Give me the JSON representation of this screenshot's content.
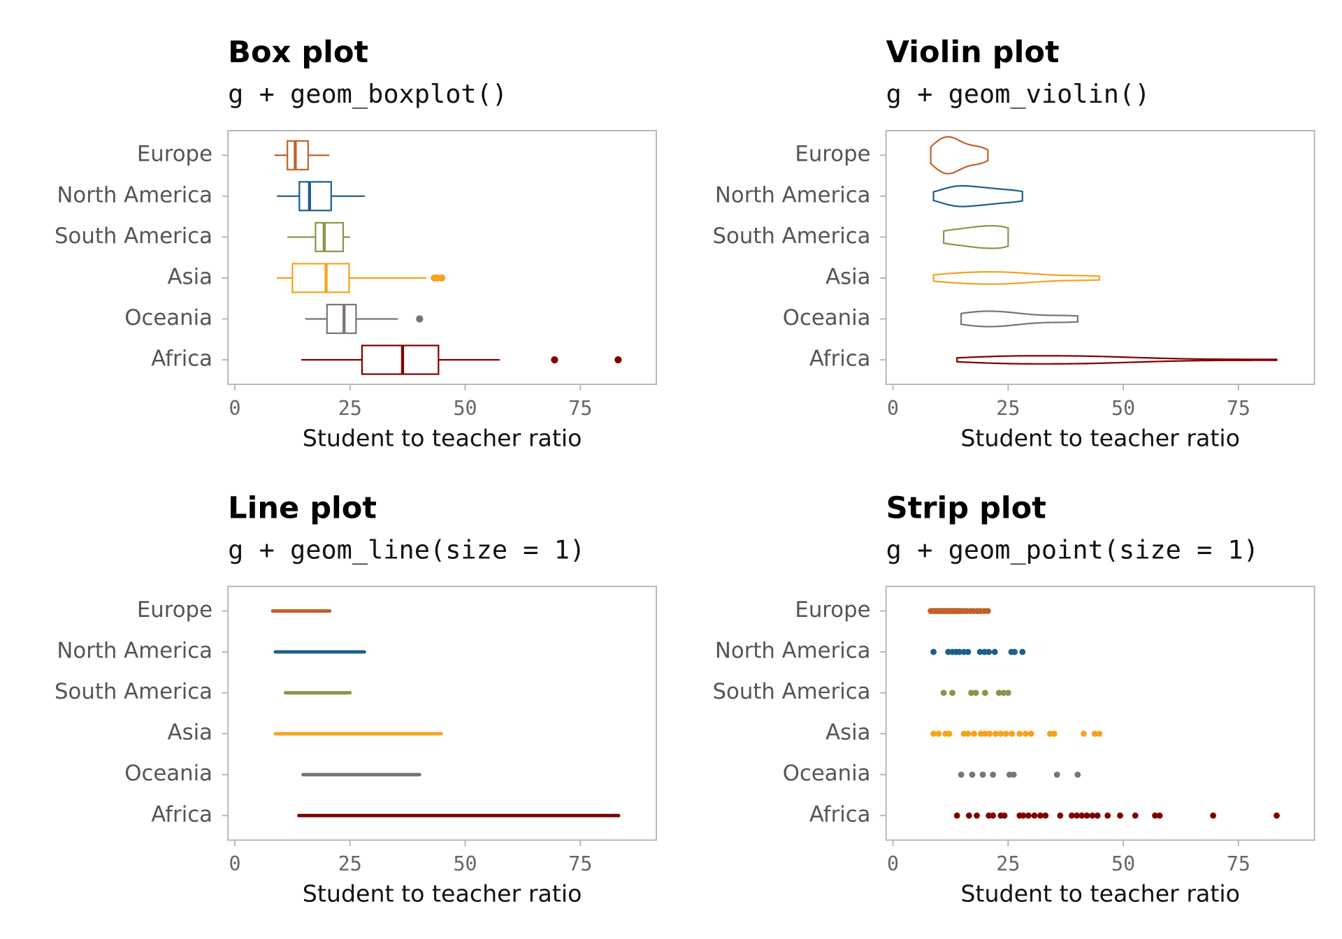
{
  "chart_data": [
    {
      "type": "box",
      "title": "Box plot",
      "subtitle": "g + geom_boxplot()",
      "xlabel": "Student to teacher ratio",
      "categories": [
        "Europe",
        "North America",
        "South America",
        "Asia",
        "Oceania",
        "Africa"
      ],
      "colors": [
        "#c1612a",
        "#1d5f8a",
        "#86974a",
        "#f5a31f",
        "#767676",
        "#800000"
      ],
      "boxes": [
        {
          "min": 8.6,
          "q1": 11.4,
          "median": 13.1,
          "q3": 15.9,
          "max": 20.5,
          "outliers": []
        },
        {
          "min": 9.1,
          "q1": 14.0,
          "median": 16.2,
          "q3": 20.9,
          "max": 28.2,
          "outliers": []
        },
        {
          "min": 11.4,
          "q1": 17.5,
          "median": 19.4,
          "q3": 23.5,
          "max": 25.0,
          "outliers": []
        },
        {
          "min": 9.1,
          "q1": 12.5,
          "median": 19.8,
          "q3": 24.8,
          "max": 41.6,
          "outliers": [
            43.3,
            44.0,
            44.9
          ]
        },
        {
          "min": 15.3,
          "q1": 20.0,
          "median": 23.7,
          "q3": 26.3,
          "max": 35.4,
          "outliers": [
            40.1
          ]
        },
        {
          "min": 14.4,
          "q1": 27.6,
          "median": 36.4,
          "q3": 44.2,
          "max": 57.5,
          "outliers": [
            69.4,
            83.2
          ]
        }
      ],
      "xlim": [
        -1.5,
        91.5
      ],
      "xticks": [
        0,
        25,
        50,
        75
      ]
    },
    {
      "type": "violin",
      "title": "Violin plot",
      "subtitle": "g + geom_violin()",
      "xlabel": "Student to teacher ratio",
      "categories": [
        "Europe",
        "North America",
        "South America",
        "Asia",
        "Oceania",
        "Africa"
      ],
      "colors": [
        "#c1612a",
        "#1d5f8a",
        "#86974a",
        "#f5a31f",
        "#767676",
        "#800000"
      ],
      "values": [
        [
          8.2,
          8.8,
          9.3,
          9.8,
          10.2,
          10.6,
          11,
          11.3,
          11.7,
          12,
          12.3,
          12.6,
          13,
          13.4,
          13.8,
          14.2,
          14.7,
          15.3,
          16,
          16.8,
          17.5,
          18.3,
          19,
          19.8,
          20.6
        ],
        [
          8.8,
          12,
          12.9,
          13.7,
          14.4,
          15.4,
          16.3,
          18.9,
          19.9,
          20.8,
          22.1,
          25.7,
          26.4,
          28.1
        ],
        [
          11,
          12.9,
          17,
          18,
          20,
          23,
          24,
          25
        ],
        [
          8.8,
          9.9,
          11.4,
          12.2,
          15.4,
          16.3,
          17.6,
          19.1,
          20,
          21,
          22.3,
          23.4,
          24.5,
          25.8,
          27.5,
          28.8,
          30,
          34.1,
          35,
          41.4,
          43.8,
          44.8
        ],
        [
          14.8,
          17.2,
          19.5,
          21.7,
          25.3,
          26.2,
          35.6,
          40.1
        ],
        [
          13.9,
          16.5,
          18.2,
          20.8,
          21.7,
          23.4,
          24.2,
          27.5,
          28.3,
          29.4,
          30.7,
          32,
          33.1,
          36.3,
          38.8,
          39.9,
          41,
          42.1,
          43.3,
          44.4,
          46.6,
          49.3,
          52.6,
          56.9,
          57.9,
          69.5,
          83.3
        ]
      ],
      "xlim": [
        -1.5,
        91.5
      ],
      "xticks": [
        0,
        25,
        50,
        75
      ]
    },
    {
      "type": "line",
      "title": "Line plot",
      "subtitle": "g + geom_line(size = 1)",
      "xlabel": "Student to teacher ratio",
      "categories": [
        "Europe",
        "North America",
        "South America",
        "Asia",
        "Oceania",
        "Africa"
      ],
      "colors": [
        "#c1612a",
        "#1d5f8a",
        "#86974a",
        "#f5a31f",
        "#767676",
        "#800000"
      ],
      "values": [
        [
          8.2,
          8.8,
          9.3,
          9.8,
          10.2,
          10.6,
          11,
          11.3,
          11.7,
          12,
          12.3,
          12.6,
          13,
          13.4,
          13.8,
          14.2,
          14.7,
          15.3,
          16,
          16.8,
          17.5,
          18.3,
          19,
          19.8,
          20.6
        ],
        [
          8.8,
          12,
          12.9,
          13.7,
          14.4,
          15.4,
          16.3,
          18.9,
          19.9,
          20.8,
          22.1,
          25.7,
          26.4,
          28.1
        ],
        [
          11,
          12.9,
          17,
          18,
          20,
          23,
          24,
          25
        ],
        [
          8.8,
          9.9,
          11.4,
          12.2,
          15.4,
          16.3,
          17.6,
          19.1,
          20,
          21,
          22.3,
          23.4,
          24.5,
          25.8,
          27.5,
          28.8,
          30,
          34.1,
          35,
          41.4,
          43.8,
          44.8
        ],
        [
          14.8,
          17.2,
          19.5,
          21.7,
          25.3,
          26.2,
          35.6,
          40.1
        ],
        [
          13.9,
          16.5,
          18.2,
          20.8,
          21.7,
          23.4,
          24.2,
          27.5,
          28.3,
          29.4,
          30.7,
          32,
          33.1,
          36.3,
          38.8,
          39.9,
          41,
          42.1,
          43.3,
          44.4,
          46.6,
          49.3,
          52.6,
          56.9,
          57.9,
          69.5,
          83.3
        ]
      ],
      "xlim": [
        -1.5,
        91.5
      ],
      "xticks": [
        0,
        25,
        50,
        75
      ]
    },
    {
      "type": "strip",
      "title": "Strip plot",
      "subtitle": "g + geom_point(size = 1)",
      "xlabel": "Student to teacher ratio",
      "categories": [
        "Europe",
        "North America",
        "South America",
        "Asia",
        "Oceania",
        "Africa"
      ],
      "colors": [
        "#c1612a",
        "#1d5f8a",
        "#86974a",
        "#f5a31f",
        "#767676",
        "#800000"
      ],
      "values": [
        [
          8.2,
          8.8,
          9.3,
          9.8,
          10.2,
          10.6,
          11,
          11.3,
          11.7,
          12,
          12.3,
          12.6,
          13,
          13.4,
          13.8,
          14.2,
          14.7,
          15.3,
          16,
          16.8,
          17.5,
          18.3,
          19,
          19.8,
          20.6
        ],
        [
          8.8,
          12,
          12.9,
          13.7,
          14.4,
          15.4,
          16.3,
          18.9,
          19.9,
          20.8,
          22.1,
          25.7,
          26.4,
          28.1
        ],
        [
          11,
          12.9,
          17,
          18,
          20,
          23,
          24,
          25
        ],
        [
          8.8,
          9.9,
          11.4,
          12.2,
          15.4,
          16.3,
          17.6,
          19.1,
          20,
          21,
          22.3,
          23.4,
          24.5,
          25.8,
          27.5,
          28.8,
          30,
          34.1,
          35,
          41.4,
          43.8,
          44.8
        ],
        [
          14.8,
          17.2,
          19.5,
          21.7,
          25.3,
          26.2,
          35.6,
          40.1
        ],
        [
          13.9,
          16.5,
          18.2,
          20.8,
          21.7,
          23.4,
          24.2,
          27.5,
          28.3,
          29.4,
          30.7,
          32,
          33.1,
          36.3,
          38.8,
          39.9,
          41,
          42.1,
          43.3,
          44.4,
          46.6,
          49.3,
          52.6,
          56.9,
          57.9,
          69.5,
          83.3
        ]
      ],
      "xlim": [
        -1.5,
        91.5
      ],
      "xticks": [
        0,
        25,
        50,
        75
      ]
    }
  ]
}
